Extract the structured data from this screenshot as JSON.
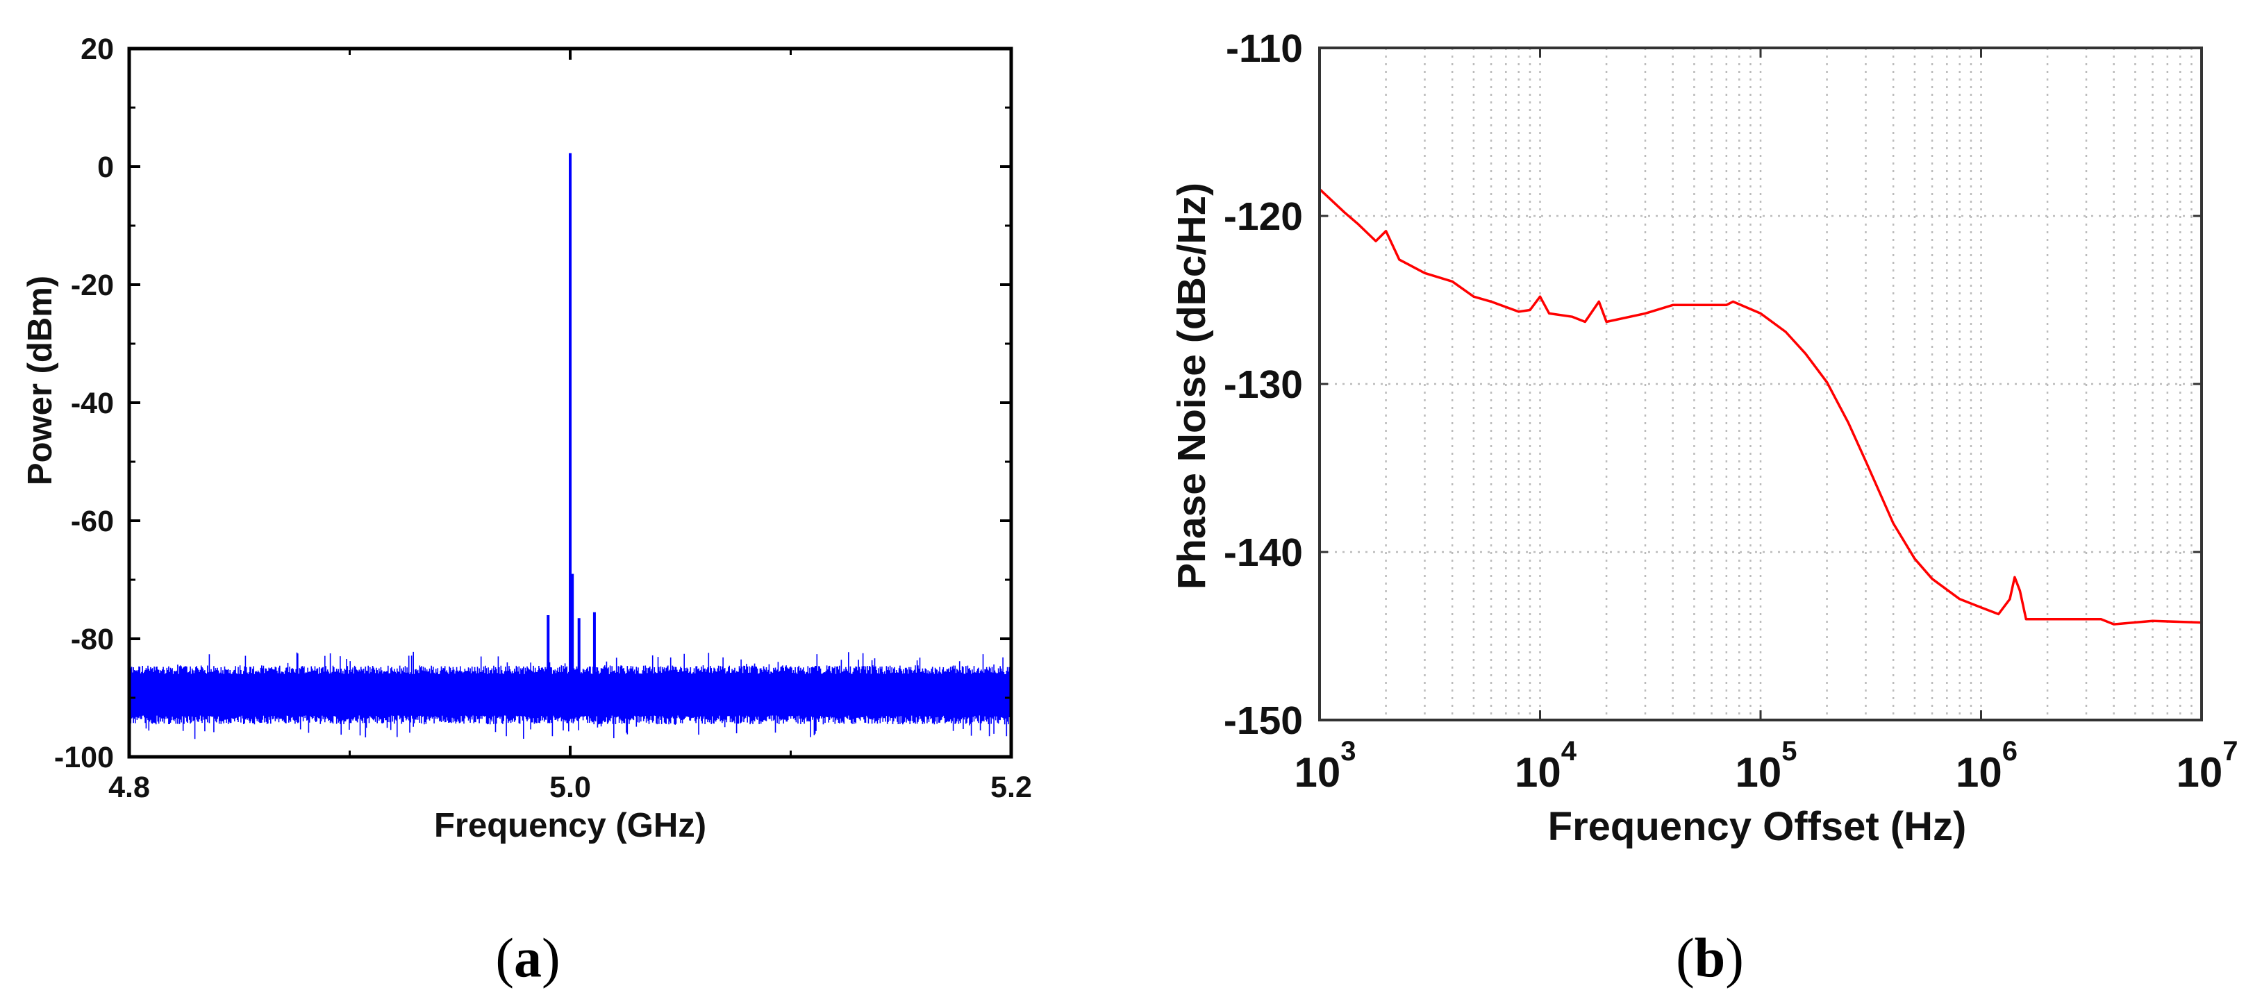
{
  "chart_data": [
    {
      "type": "line",
      "panel_label": "a",
      "xlabel": "Frequency (GHz)",
      "ylabel": "Power (dBm)",
      "xlim": [
        4.8,
        5.2
      ],
      "ylim": [
        -100,
        20
      ],
      "xticks": [
        4.8,
        5.0,
        5.2
      ],
      "xtick_labels": [
        "4.8",
        "5.0",
        "5.2"
      ],
      "x_minor_ticks": [
        4.9,
        5.1
      ],
      "yticks": [
        -100,
        -80,
        -60,
        -40,
        -20,
        0,
        20
      ],
      "ytick_labels": [
        "-100",
        "-80",
        "-60",
        "-40",
        "-20",
        "0",
        "20"
      ],
      "y_minor_ticks": [
        -90,
        -70,
        -50,
        -30,
        -10,
        10
      ],
      "grid": false,
      "color": "#0000ff",
      "noise_floor": {
        "upper_dbm": [
          -86,
          -82
        ],
        "lower_dbm": [
          -93,
          -97
        ]
      },
      "peaks": [
        {
          "x": 4.99,
          "y": -76
        },
        {
          "x": 5.0,
          "y": 2.3
        },
        {
          "x": 5.001,
          "y": -69
        },
        {
          "x": 5.004,
          "y": -76.5
        },
        {
          "x": 5.011,
          "y": -75.5
        }
      ]
    },
    {
      "type": "line",
      "panel_label": "b",
      "xlabel": "Frequency Offset (Hz)",
      "ylabel": "Phase Noise (dBc/Hz)",
      "xscale": "log",
      "xlim": [
        1000,
        10000000
      ],
      "ylim": [
        -150,
        -110
      ],
      "xticks": [
        1000,
        10000,
        100000,
        1000000,
        10000000
      ],
      "xtick_labels": [
        {
          "base": "10",
          "exp": "3"
        },
        {
          "base": "10",
          "exp": "4"
        },
        {
          "base": "10",
          "exp": "5"
        },
        {
          "base": "10",
          "exp": "6"
        },
        {
          "base": "10",
          "exp": "7"
        }
      ],
      "yticks": [
        -150,
        -140,
        -130,
        -120,
        -110
      ],
      "ytick_labels": [
        "-150",
        "-140",
        "-130",
        "-120",
        "-110"
      ],
      "grid": true,
      "color": "#ff0000",
      "x": [
        1000,
        1300,
        1500,
        1800,
        2000,
        2300,
        3000,
        4000,
        5000,
        6000,
        8000,
        9000,
        10000,
        11000,
        14000,
        16000,
        18500,
        20000,
        30000,
        40000,
        70000,
        75000,
        100000,
        130000,
        160000,
        200000,
        250000,
        300000,
        400000,
        500000,
        600000,
        800000,
        1000000,
        1200000,
        1350000,
        1420000,
        1500000,
        1600000,
        2000000,
        3500000,
        4000000,
        6000000,
        10000000
      ],
      "y": [
        -118.4,
        -119.8,
        -120.5,
        -121.5,
        -120.9,
        -122.6,
        -123.4,
        -123.9,
        -124.8,
        -125.1,
        -125.7,
        -125.6,
        -124.8,
        -125.8,
        -126.0,
        -126.3,
        -125.1,
        -126.3,
        -125.8,
        -125.3,
        -125.3,
        -125.1,
        -125.8,
        -126.9,
        -128.2,
        -129.9,
        -132.3,
        -134.6,
        -138.3,
        -140.4,
        -141.6,
        -142.8,
        -143.3,
        -143.7,
        -142.8,
        -141.5,
        -142.3,
        -144.0,
        -144.0,
        -144.0,
        -144.3,
        -144.1,
        -144.2
      ]
    }
  ]
}
